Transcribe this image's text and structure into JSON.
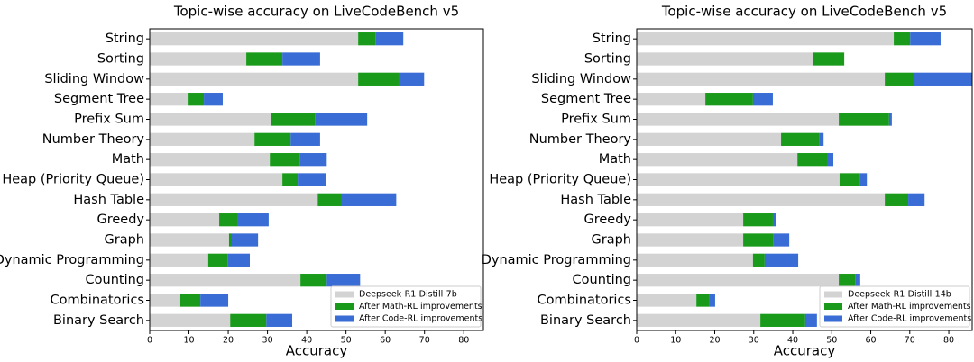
{
  "chart_data": [
    {
      "type": "bar",
      "orientation": "horizontal",
      "title": "Topic-wise accuracy on LiveCodeBench v5",
      "xlabel": "Accuracy",
      "categories": [
        "String",
        "Sorting",
        "Sliding Window",
        "Segment Tree",
        "Prefix Sum",
        "Number Theory",
        "Math",
        "Heap (Priority Queue)",
        "Hash Table",
        "Greedy",
        "Graph",
        "Dynamic Programming",
        "Counting",
        "Combinatorics",
        "Binary Search"
      ],
      "series": [
        {
          "name": "Deepseek-R1-Distill-7b",
          "color": "#d3d3d3",
          "values": [
            53.1,
            24.6,
            53.1,
            9.9,
            30.8,
            26.7,
            30.6,
            33.8,
            42.8,
            17.7,
            20.2,
            14.9,
            38.4,
            7.8,
            20.5
          ]
        },
        {
          "name": "After Math-RL improvements",
          "color": "#1a9a1a",
          "values": [
            4.4,
            9.2,
            10.3,
            3.9,
            11.3,
            9.2,
            7.6,
            3.9,
            5.9,
            4.8,
            0.7,
            4.9,
            6.7,
            5.1,
            9.2
          ]
        },
        {
          "name": "After Code-RL improvements",
          "color": "#3a6cd6",
          "values": [
            7.1,
            9.6,
            6.5,
            4.8,
            13.3,
            7.5,
            6.9,
            7.1,
            14.1,
            7.8,
            6.7,
            5.7,
            8.5,
            7.1,
            6.6
          ]
        }
      ],
      "xlim": [
        0,
        85
      ],
      "xticks": [
        0,
        10,
        20,
        30,
        40,
        50,
        60,
        70,
        80
      ],
      "legend": "lower right"
    },
    {
      "type": "bar",
      "orientation": "horizontal",
      "title": "Topic-wise accuracy on LiveCodeBench v5",
      "xlabel": "Accuracy",
      "categories": [
        "String",
        "Sorting",
        "Sliding Window",
        "Segment Tree",
        "Prefix Sum",
        "Number Theory",
        "Math",
        "Heap (Priority Queue)",
        "Hash Table",
        "Greedy",
        "Graph",
        "Dynamic Programming",
        "Counting",
        "Combinatorics",
        "Binary Search"
      ],
      "series": [
        {
          "name": "Deepseek-R1-Distill-14b",
          "color": "#d3d3d3",
          "values": [
            65.9,
            45.3,
            63.6,
            17.6,
            51.8,
            37,
            41.2,
            52,
            63.6,
            27.3,
            27.3,
            29.8,
            51.8,
            15.3,
            31.7
          ]
        },
        {
          "name": "After Math-RL improvements",
          "color": "#1a9a1a",
          "values": [
            4.2,
            7.9,
            7.4,
            12.2,
            12.9,
            9.9,
            7.8,
            5.3,
            6.0,
            7.6,
            7.8,
            3.0,
            4.2,
            3.4,
            11.5
          ]
        },
        {
          "name": "After Code-RL improvements",
          "color": "#3a6cd6",
          "values": [
            7.8,
            0,
            15.0,
            5.1,
            0.7,
            1.0,
            1.4,
            1.7,
            4.2,
            0.9,
            4.0,
            8.6,
            1.3,
            1.4,
            3.0
          ]
        }
      ],
      "xlim": [
        0,
        86
      ],
      "xticks": [
        0,
        10,
        20,
        30,
        40,
        50,
        60,
        70,
        80
      ],
      "legend": "lower right"
    }
  ]
}
